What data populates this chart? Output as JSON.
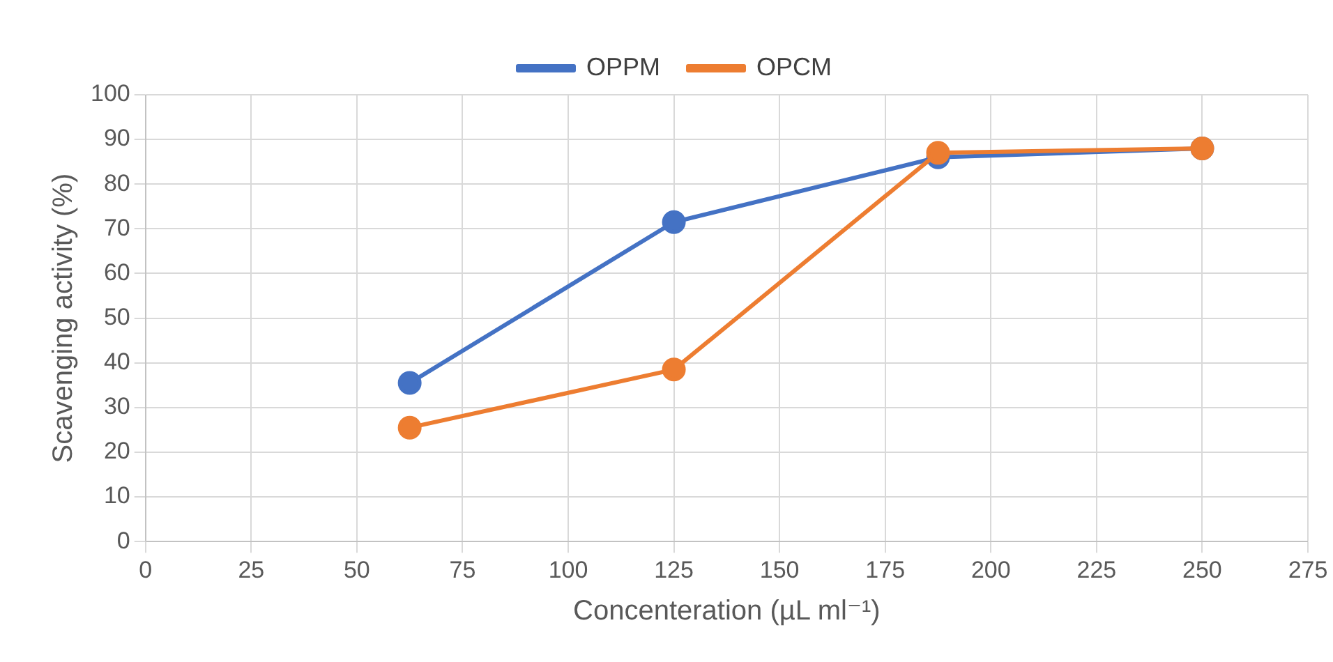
{
  "chart_data": {
    "type": "line",
    "xlabel": "Concenteration (µL ml⁻¹)",
    "ylabel": "Scavenging activity (%)",
    "x": [
      62.5,
      125,
      187.5,
      250
    ],
    "series": [
      {
        "name": "OPPM",
        "color": "#4472c4",
        "values": [
          35.5,
          71.5,
          86,
          88
        ]
      },
      {
        "name": "OPCM",
        "color": "#ed7d31",
        "values": [
          25.5,
          38.5,
          87,
          88
        ]
      }
    ],
    "xlim": [
      0,
      275
    ],
    "xticks": [
      0,
      25,
      50,
      75,
      100,
      125,
      150,
      175,
      200,
      225,
      250,
      275
    ],
    "ylim": [
      0,
      100
    ],
    "yticks": [
      0,
      10,
      20,
      30,
      40,
      50,
      60,
      70,
      80,
      90,
      100
    ],
    "grid": true,
    "legend": "top",
    "marker": "circle",
    "line_style": "solid"
  }
}
